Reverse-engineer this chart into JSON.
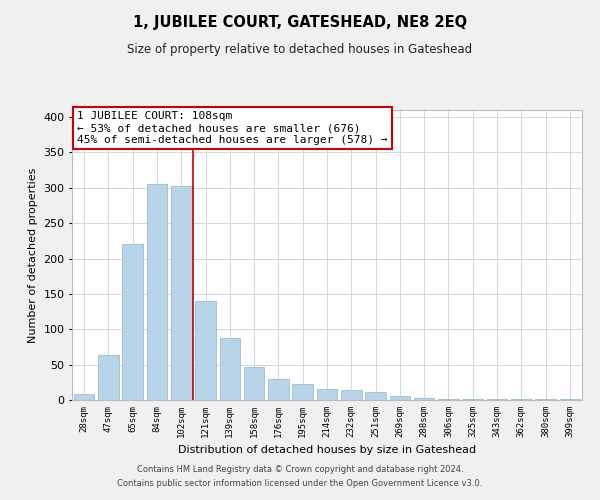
{
  "title": "1, JUBILEE COURT, GATESHEAD, NE8 2EQ",
  "subtitle": "Size of property relative to detached houses in Gateshead",
  "xlabel": "Distribution of detached houses by size in Gateshead",
  "ylabel": "Number of detached properties",
  "bar_labels": [
    "28sqm",
    "47sqm",
    "65sqm",
    "84sqm",
    "102sqm",
    "121sqm",
    "139sqm",
    "158sqm",
    "176sqm",
    "195sqm",
    "214sqm",
    "232sqm",
    "251sqm",
    "269sqm",
    "288sqm",
    "306sqm",
    "325sqm",
    "343sqm",
    "362sqm",
    "380sqm",
    "399sqm"
  ],
  "bar_values": [
    9,
    63,
    221,
    305,
    303,
    140,
    88,
    46,
    30,
    22,
    16,
    14,
    12,
    5,
    3,
    2,
    1,
    1,
    1,
    1,
    1
  ],
  "bar_color": "#b8d4e8",
  "bar_edge_color": "#9bbdd4",
  "vline_x": 4.5,
  "vline_color": "#cc0000",
  "annotation_text": "1 JUBILEE COURT: 108sqm\n← 53% of detached houses are smaller (676)\n45% of semi-detached houses are larger (578) →",
  "annotation_box_color": "white",
  "annotation_box_edge": "#cc0000",
  "ylim": [
    0,
    410
  ],
  "footer": "Contains HM Land Registry data © Crown copyright and database right 2024.\nContains public sector information licensed under the Open Government Licence v3.0.",
  "bg_color": "#f0f0f0",
  "plot_bg_color": "white",
  "grid_color": "#d0d8e0"
}
